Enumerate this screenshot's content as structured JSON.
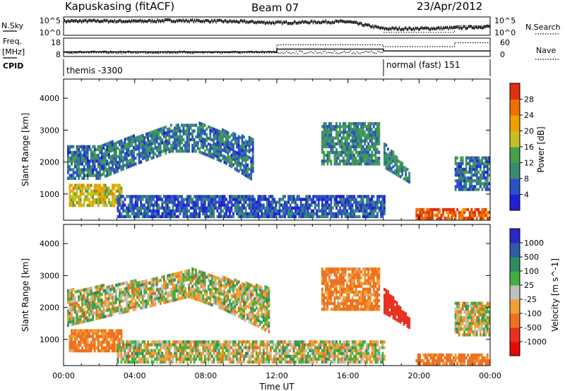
{
  "header": {
    "station": "Kapuskasing (fitACF)",
    "beam": "Beam 07",
    "date": "23/Apr/2012"
  },
  "side_labels": {
    "nsky": "N.Sky",
    "freq_top": "Freq.",
    "freq_unit": "[MHz]",
    "cpid": "CPID",
    "nsearch": "N.Search",
    "nave": "Nave"
  },
  "nsky_axis": {
    "top": "10^5",
    "bottom": "10^0"
  },
  "nsearch_axis": {
    "top": "10^5",
    "bottom": "10^0"
  },
  "freq_axis": {
    "top": "18",
    "bottom": "8"
  },
  "nave_axis": {
    "top": "60",
    "bottom": "0"
  },
  "cpid_segments": [
    {
      "label": "themis -3300",
      "start_hour": 0,
      "end_hour": 18
    },
    {
      "label": "normal (fast) 151",
      "start_hour": 18,
      "end_hour": 24
    }
  ],
  "time_axis": {
    "label": "Time UT",
    "ticks": [
      "00:00",
      "04:00",
      "08:00",
      "12:00",
      "16:00",
      "20:00",
      "00:00"
    ]
  },
  "range_axis": {
    "label": "Slant Range [km]",
    "ticks": [
      "1000",
      "2000",
      "3000",
      "4000"
    ]
  },
  "power_colorbar": {
    "label": "Power [dB]",
    "ticks": [
      "4",
      "8",
      "12",
      "16",
      "20",
      "24",
      "28"
    ],
    "colors": [
      "#2020d8",
      "#2a50c8",
      "#3a8a70",
      "#48a048",
      "#c8c020",
      "#f0a000",
      "#f07000",
      "#e03010"
    ]
  },
  "velocity_colorbar": {
    "label": "Velocity [m s^-1]",
    "ticks": [
      "1000",
      "500",
      "100",
      "25",
      "-25",
      "-100",
      "-500",
      "-1000"
    ],
    "colors": [
      "#2828c8",
      "#2e5aa8",
      "#2e8a60",
      "#40b040",
      "#c0c0c0",
      "#f0a030",
      "#f07020",
      "#e83020",
      "#e80808"
    ]
  },
  "chart_data": [
    {
      "type": "line",
      "title": "N.Sky / N.Search",
      "x_range_hours": [
        0,
        24
      ],
      "nsky_log10_level": [
        [
          0,
          4.2
        ],
        [
          2,
          4.3
        ],
        [
          4,
          4.2
        ],
        [
          6,
          4.4
        ],
        [
          8,
          4.3
        ],
        [
          10,
          4.1
        ],
        [
          12,
          3.8
        ],
        [
          14,
          4.0
        ],
        [
          16,
          4.1
        ],
        [
          18,
          2.2
        ],
        [
          20,
          2.2
        ],
        [
          22,
          2.4
        ],
        [
          24,
          2.8
        ]
      ],
      "nsearch_log10_level": [
        [
          18,
          0.8
        ],
        [
          22,
          0.8
        ],
        [
          22,
          2.6
        ],
        [
          24,
          2.6
        ]
      ]
    },
    {
      "type": "line",
      "title": "Freq. / Nave",
      "x_range_hours": [
        0,
        24
      ],
      "frequency_mhz": [
        [
          0,
          10.5
        ],
        [
          12,
          10.5
        ],
        [
          12,
          12.0
        ],
        [
          18,
          12.0
        ],
        [
          18,
          11.0
        ],
        [
          24,
          11.0
        ]
      ],
      "nave": [
        [
          0,
          12
        ],
        [
          12,
          12
        ],
        [
          12,
          38
        ],
        [
          18,
          38
        ],
        [
          18,
          32
        ],
        [
          22,
          32
        ],
        [
          22,
          45
        ],
        [
          24,
          45
        ]
      ]
    },
    {
      "type": "heatmap",
      "title": "Power [dB]",
      "xlabel": "Time UT",
      "ylabel": "Slant Range [km]",
      "x_range_hours": [
        0,
        24
      ],
      "y_range_km": [
        180,
        4600
      ],
      "zlim_db": [
        0,
        30
      ],
      "echo_regions": [
        {
          "name": "main arc",
          "t_start": 0.2,
          "t_end": 10.6,
          "range_km": [
            [
              0.2,
              1450,
              2500
            ],
            [
              2,
              1450,
              2500
            ],
            [
              4,
              1900,
              2800
            ],
            [
              6,
              2300,
              3150
            ],
            [
              7.5,
              2300,
              3200
            ],
            [
              9,
              1950,
              2950
            ],
            [
              10.6,
              1400,
              2700
            ]
          ],
          "power_db": 8
        },
        {
          "name": "near-range enhancement",
          "t_start": 0.3,
          "t_end": 3.3,
          "range_km": [
            [
              0.3,
              600,
              1300
            ],
            [
              3.3,
              600,
              1300
            ]
          ],
          "power_db": 18
        },
        {
          "name": "near-range ground",
          "t_start": 3.0,
          "t_end": 18.0,
          "range_km": [
            [
              3.0,
              250,
              900
            ],
            [
              18.0,
              250,
              900
            ]
          ],
          "power_db": 6
        },
        {
          "name": "evening patch",
          "t_start": 14.5,
          "t_end": 17.8,
          "range_km": [
            [
              14.5,
              1900,
              3200
            ],
            [
              17.8,
              1900,
              3200
            ]
          ],
          "power_db": 10
        },
        {
          "name": "descending trace",
          "t_start": 18.0,
          "t_end": 19.5,
          "range_km": [
            [
              18.0,
              1800,
              2600
            ],
            [
              19.5,
              1300,
              1600
            ]
          ],
          "power_db": 10
        },
        {
          "name": "late high power",
          "t_start": 19.8,
          "t_end": 24.0,
          "range_km": [
            [
              19.8,
              200,
              500
            ],
            [
              24.0,
              200,
              500
            ]
          ],
          "power_db": 26
        },
        {
          "name": "late patch",
          "t_start": 22.0,
          "t_end": 24.0,
          "range_km": [
            [
              22.0,
              1100,
              2100
            ],
            [
              24.0,
              1100,
              2100
            ]
          ],
          "power_db": 8
        }
      ]
    },
    {
      "type": "heatmap",
      "title": "Velocity [m s^-1]",
      "xlabel": "Time UT",
      "ylabel": "Slant Range [km]",
      "x_range_hours": [
        0,
        24
      ],
      "y_range_km": [
        180,
        4600
      ],
      "zlim_ms": [
        -1000,
        1000
      ],
      "echo_regions": [
        {
          "name": "main arc ground scatter",
          "t_start": 0.2,
          "t_end": 11.5,
          "range_km": [
            [
              0.2,
              1400,
              2500
            ],
            [
              4,
              1900,
              2800
            ],
            [
              7,
              2300,
              3200
            ],
            [
              9,
              1900,
              2900
            ],
            [
              11.5,
              1200,
              2600
            ]
          ],
          "velocity_ms": 0
        },
        {
          "name": "near-range low velocity",
          "t_start": 0.3,
          "t_end": 3.3,
          "range_km": [
            [
              0.3,
              600,
              1300
            ],
            [
              3.3,
              600,
              1300
            ]
          ],
          "velocity_ms": -150
        },
        {
          "name": "ground scatter band",
          "t_start": 3.0,
          "t_end": 18.0,
          "range_km": [
            [
              3.0,
              250,
              900
            ],
            [
              18.0,
              250,
              900
            ]
          ],
          "velocity_ms": 0
        },
        {
          "name": "evening flow",
          "t_start": 14.5,
          "t_end": 17.8,
          "range_km": [
            [
              14.5,
              1900,
              3200
            ],
            [
              17.8,
              1900,
              3200
            ]
          ],
          "velocity_ms": -150
        },
        {
          "name": "descending trace",
          "t_start": 18.0,
          "t_end": 19.5,
          "range_km": [
            [
              18.0,
              1800,
              2600
            ],
            [
              19.5,
              1300,
              1600
            ]
          ],
          "velocity_ms": -800
        },
        {
          "name": "late near-range flow",
          "t_start": 19.8,
          "t_end": 24.0,
          "range_km": [
            [
              19.8,
              200,
              500
            ],
            [
              24.0,
              200,
              500
            ]
          ],
          "velocity_ms": -200
        },
        {
          "name": "late patch",
          "t_start": 22.0,
          "t_end": 24.0,
          "range_km": [
            [
              22.0,
              1100,
              2100
            ],
            [
              24.0,
              1100,
              2100
            ]
          ],
          "velocity_ms": 0
        }
      ]
    }
  ]
}
